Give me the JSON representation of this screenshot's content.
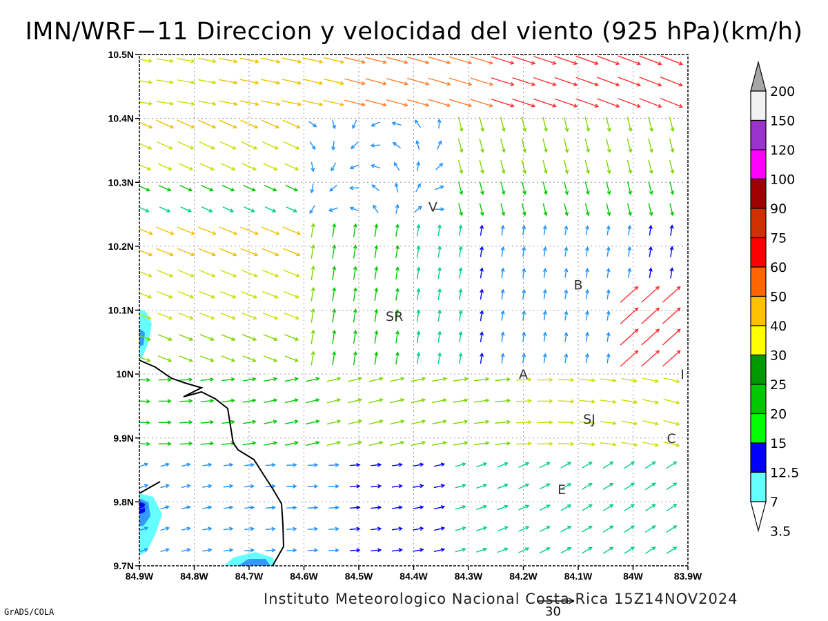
{
  "title": "IMN/WRF−11 Direccion y velocidad del viento (925 hPa)(km/h)",
  "footer": "Instituto Meteorologico Nacional Costa Rica  15Z14NOV2024",
  "software": "GrADS/COLA",
  "reference_vector": "30",
  "axes": {
    "lon_labels": [
      "84.9W",
      "84.8W",
      "84.7W",
      "84.6W",
      "84.5W",
      "84.4W",
      "84.3W",
      "84.2W",
      "84.1W",
      "84W",
      "83.9W"
    ],
    "lat_labels": [
      "10.5N",
      "10.4N",
      "10.3N",
      "10.2N",
      "10.1N",
      "10N",
      "9.9N",
      "9.8N",
      "9.7N"
    ],
    "lon_range": [
      -84.9,
      -83.9
    ],
    "lat_range": [
      9.7,
      10.5
    ]
  },
  "places": [
    {
      "label": "V",
      "lon": -84.365,
      "lat": 10.262
    },
    {
      "label": "SR",
      "lon": -84.435,
      "lat": 10.091
    },
    {
      "label": "B",
      "lon": -84.1,
      "lat": 10.14
    },
    {
      "label": "A",
      "lon": -84.2,
      "lat": 10.0
    },
    {
      "label": "I",
      "lon": -83.91,
      "lat": 10.0
    },
    {
      "label": "SJ",
      "lon": -84.08,
      "lat": 9.93
    },
    {
      "label": "C",
      "lon": -83.93,
      "lat": 9.9
    },
    {
      "label": "E",
      "lon": -84.13,
      "lat": 9.82
    }
  ],
  "colorbar": {
    "levels": [
      "200",
      "150",
      "120",
      "100",
      "90",
      "75",
      "60",
      "50",
      "40",
      "30",
      "25",
      "20",
      "15",
      "12.5",
      "7",
      "3.5"
    ],
    "colors": [
      "#a6a6a6",
      "#f2f2f2",
      "#9a32cd",
      "#ff00ff",
      "#a00000",
      "#d03000",
      "#ff0000",
      "#ff6600",
      "#ffc000",
      "#ffff00",
      "#009900",
      "#00c800",
      "#00ff00",
      "#0000ff",
      "#3399ff",
      "#66ffff"
    ]
  }
}
